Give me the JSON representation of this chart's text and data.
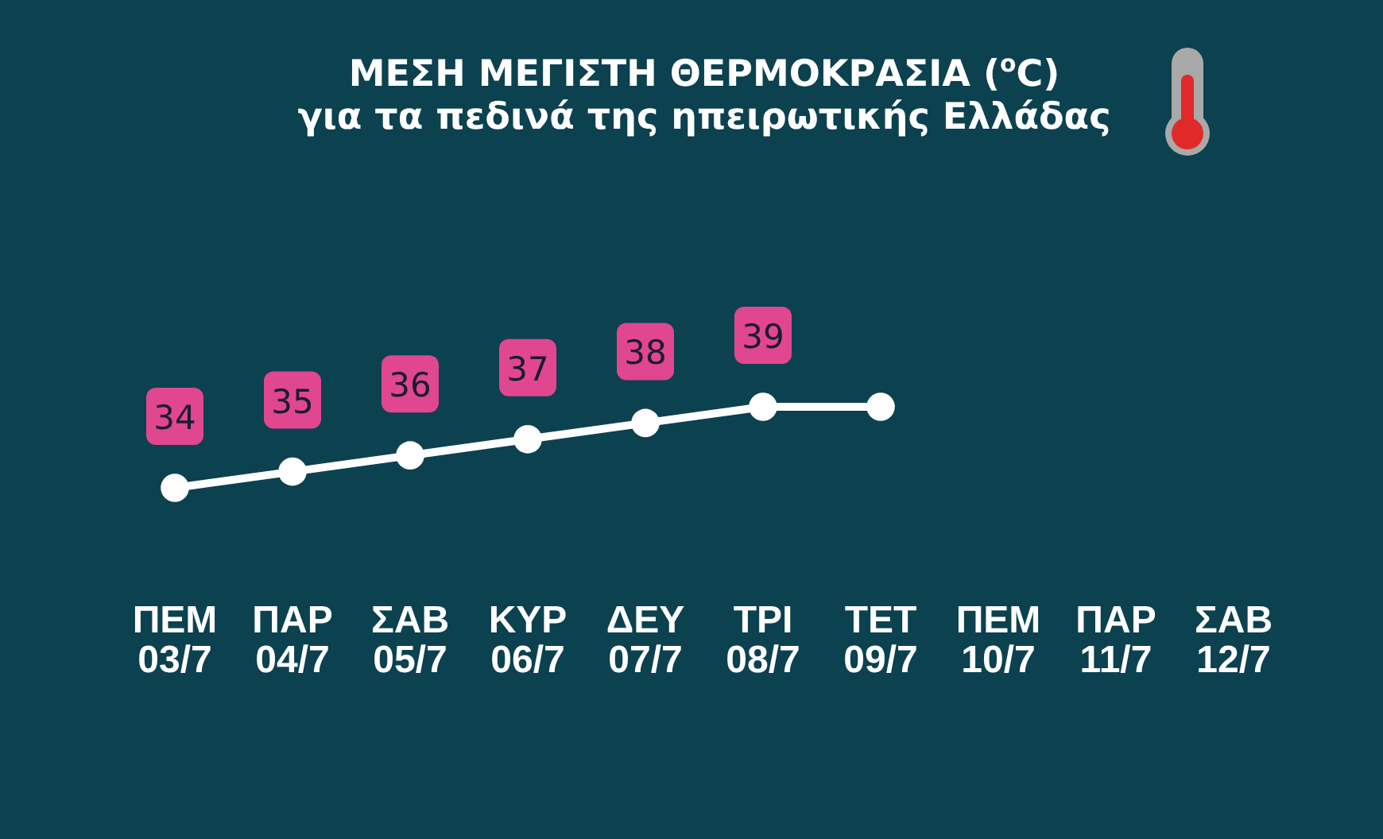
{
  "chart_data": {
    "type": "line",
    "title": "ΜΕΣΗ ΜΕΓΙΣΤΗ ΘΕΡΜΟΚΡΑΣΙΑ ($^{o}$C)",
    "subtitle": "για τα πεδινά της ηπειρωτικής Ελλάδας",
    "categories": [
      "ΠΕΜ\n03/7",
      "ΠΑΡ\n04/7",
      "ΣΑΒ\n05/7",
      "ΚΥΡ\n06/7",
      "ΔΕΥ\n07/7",
      "ΤΡΙ\n08/7",
      "ΤΕΤ\n09/7",
      "ΠΕΜ\n10/7",
      "ΠΑΡ\n11/7",
      "ΣΑΒ\n12/7"
    ],
    "series": [
      {
        "color": "#ffffff",
        "values": [
          34,
          35,
          36,
          37,
          38,
          39,
          39,
          null,
          null,
          null
        ],
        "value_labels": [
          "34",
          "35",
          "36",
          "37",
          "38",
          "39",
          null,
          null,
          null,
          null
        ]
      }
    ],
    "marker": "circle",
    "tick_labels": "x"
  }
}
